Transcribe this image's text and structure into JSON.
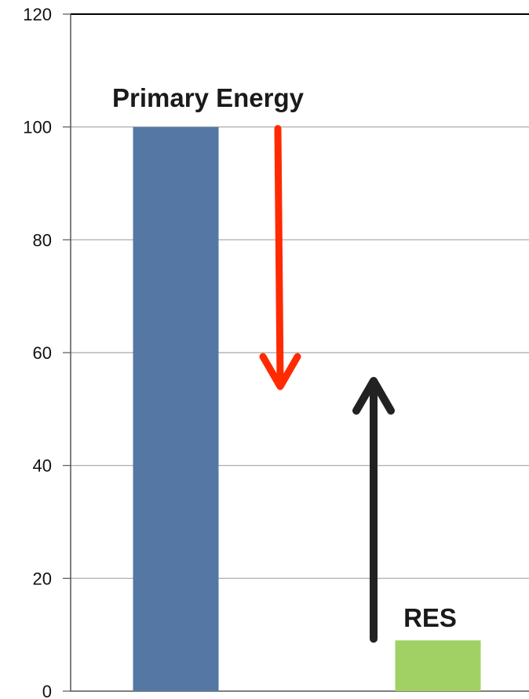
{
  "chart_data": {
    "type": "bar",
    "categories": [
      "Primary Energy",
      "RES"
    ],
    "values": [
      100,
      9
    ],
    "bar_labels": [
      "Primary Energy",
      "RES"
    ],
    "colors": [
      "#5478a3",
      "#a1d164"
    ],
    "ylim": [
      0,
      120
    ],
    "yticks": [
      "0",
      "20",
      "40",
      "60",
      "80",
      "100",
      "120"
    ],
    "grid": true,
    "annotations": [
      {
        "type": "arrow",
        "direction": "down",
        "color": "#ff2a00",
        "from": 100,
        "to": 54
      },
      {
        "type": "arrow",
        "direction": "up",
        "color": "#222222",
        "from": 9,
        "to": 55
      }
    ]
  }
}
